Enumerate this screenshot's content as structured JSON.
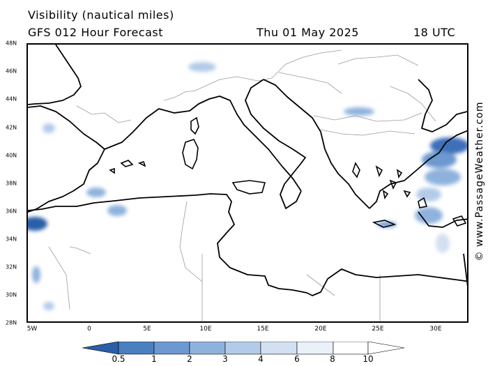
{
  "title": "Visibility (nautical miles)",
  "subtitle": "GFS 012 Hour Forecast",
  "datetime": "Thu 01 May 2025",
  "utc": "18 UTC",
  "credit": "© www.PassageWeather.com",
  "lat_labels": [
    "48N",
    "46N",
    "44N",
    "42N",
    "40N",
    "38N",
    "36N",
    "34N",
    "32N",
    "30N",
    "28N"
  ],
  "lon_labels": [
    "5W",
    "0",
    "5E",
    "10E",
    "15E",
    "20E",
    "25E",
    "30E"
  ],
  "colorbar": {
    "labels": [
      "0.5",
      "1",
      "2",
      "3",
      "4",
      "6",
      "8",
      "10"
    ],
    "colors": [
      "#2a5fa8",
      "#4a7fc0",
      "#6d99d0",
      "#8fb2dd",
      "#b3cbe8",
      "#d2e0f2",
      "#eaf1f9",
      "#ffffff"
    ]
  },
  "colors": {
    "coast": "#000000",
    "border": "#9a9a9a",
    "fog": "#6d99d0"
  }
}
